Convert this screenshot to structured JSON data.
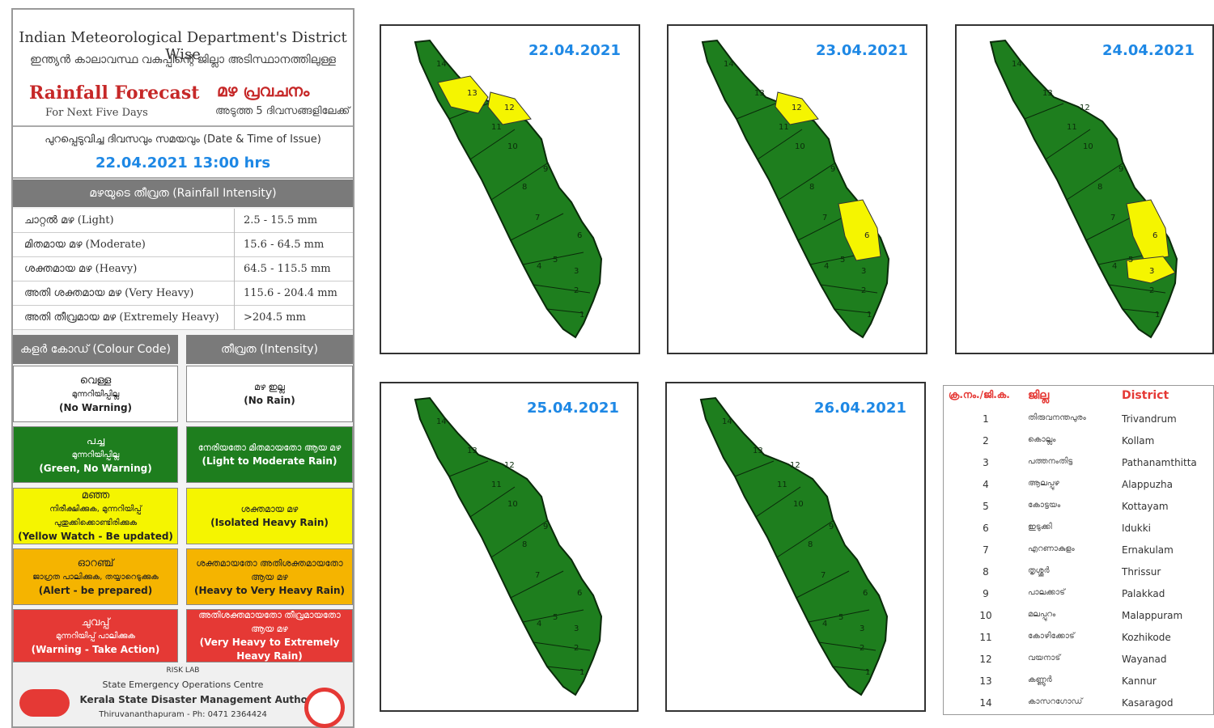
{
  "header": {
    "imd_title": "Indian Meteorological Department's District Wise",
    "imd_title_ml": "ഇന്ത്യൻ കാലാവസ്ഥ വകുപ്പിന്റെ ജില്ലാ അടിസ്ഥാനത്തിലുള്ള",
    "forecast_title": "Rainfall Forecast",
    "forecast_title_ml": "മഴ പ്രവചനം",
    "forecast_subtitle": "For Next Five Days",
    "forecast_subtitle_ml": "അടുത്ത 5 ദിവസങ്ങളിലേക്ക്"
  },
  "issue": {
    "label": "പുറപ്പെടുവിച്ച ദിവസവും സമയവും (Date & Time of Issue)",
    "value": "22.04.2021   13:00 hrs"
  },
  "intensity": {
    "header": "മഴയുടെ തീവ്രത (Rainfall Intensity)",
    "rows": [
      {
        "label": "ചാറ്റൽ മഴ (Light)",
        "range": "2.5 - 15.5 mm"
      },
      {
        "label": "മിതമായ മഴ (Moderate)",
        "range": "15.6 - 64.5 mm"
      },
      {
        "label": "ശക്തമായ മഴ (Heavy)",
        "range": "64.5 - 115.5 mm"
      },
      {
        "label": "അതി ശക്തമായ മഴ (Very Heavy)",
        "range": "115.6 - 204.4 mm"
      },
      {
        "label": "അതി തീവ്രമായ മഴ (Extremely Heavy)",
        "range": ">204.5 mm"
      }
    ]
  },
  "colour_code": {
    "header_left": "കളർ കോഡ് (Colour Code)",
    "header_right": "തീവ്രത (Intensity)",
    "rows": [
      {
        "left_ml": "വെള്ള",
        "left_ml2": "മുന്നറിയിപ്പില്ല",
        "left_en": "(No Warning)",
        "right_ml": "മഴ ഇല്ല",
        "right_en": "(No Rain)",
        "bg": "#ffffff",
        "fg": "#222222"
      },
      {
        "left_ml": "പച്ച",
        "left_ml2": "മുന്നറിയിപ്പില്ല",
        "left_en": "(Green, No Warning)",
        "right_ml": "നേരിയതോ മിതമായതോ ആയ മഴ",
        "right_en": "(Light to Moderate Rain)",
        "bg": "#1e7e1e",
        "fg": "#ffffff"
      },
      {
        "left_ml": "മഞ്ഞ",
        "left_ml2": "നിരീക്ഷിക്കുക, മുന്നറിയിപ്പ് പുതുക്കിക്കൊണ്ടിരിക്കുക",
        "left_en": "(Yellow Watch - Be updated)",
        "right_ml": "ശക്തമായ മഴ",
        "right_en": "(Isolated Heavy Rain)",
        "bg": "#f5f500",
        "fg": "#222222"
      },
      {
        "left_ml": "ഓറഞ്ച്",
        "left_ml2": "ജാഗ്രത പാലിക്കുക, തയ്യാറെടുക്കുക",
        "left_en": "(Alert - be prepared)",
        "right_ml": "ശക്തമായതോ അതിശക്തമായതോ ആയ മഴ",
        "right_en": "(Heavy to Very Heavy Rain)",
        "bg": "#f5b400",
        "fg": "#222222"
      },
      {
        "left_ml": "ചുവപ്പ്",
        "left_ml2": "മുന്നറിയിപ്പ് പാലിക്കുക",
        "left_en": "(Warning - Take Action)",
        "right_ml": "അതിശക്തമായതോ തീവ്രമായതോ ആയ മഴ",
        "right_en": "(Very Heavy to Extremely Heavy Rain)",
        "bg": "#e53935",
        "fg": "#ffffff"
      }
    ]
  },
  "footer": {
    "risk_lab": "RISK LAB",
    "centre": "State Emergency Operations Centre",
    "authority": "Kerala State Disaster Management Authority",
    "address": "Thiruvananthapuram - Ph: 0471 2364424"
  },
  "maps": [
    {
      "date": "22.04.2021",
      "yellow": [
        12,
        13
      ]
    },
    {
      "date": "23.04.2021",
      "yellow": [
        12,
        6
      ]
    },
    {
      "date": "24.04.2021",
      "yellow": [
        6,
        3
      ]
    },
    {
      "date": "25.04.2021",
      "yellow": []
    },
    {
      "date": "26.04.2021",
      "yellow": []
    }
  ],
  "colors": {
    "green": "#1e7e1e",
    "yellow": "#f5f500",
    "accent_blue": "#1e88e5",
    "title_red": "#c62828"
  },
  "districts": {
    "header_no": "ക്ര.നം./ജി.ക.",
    "header_ml": "ജില്ല",
    "header_en": "District",
    "rows": [
      {
        "n": "1",
        "ml": "തിരുവനന്തപുരം",
        "en": "Trivandrum"
      },
      {
        "n": "2",
        "ml": "കൊല്ലം",
        "en": "Kollam"
      },
      {
        "n": "3",
        "ml": "പത്തനംതിട്ട",
        "en": "Pathanamthitta"
      },
      {
        "n": "4",
        "ml": "ആലപ്പുഴ",
        "en": "Alappuzha"
      },
      {
        "n": "5",
        "ml": "കോട്ടയം",
        "en": "Kottayam"
      },
      {
        "n": "6",
        "ml": "ഇടുക്കി",
        "en": "Idukki"
      },
      {
        "n": "7",
        "ml": "എറണാകുളം",
        "en": "Ernakulam"
      },
      {
        "n": "8",
        "ml": "തൃശ്ശൂർ",
        "en": "Thrissur"
      },
      {
        "n": "9",
        "ml": "പാലക്കാട്",
        "en": "Palakkad"
      },
      {
        "n": "10",
        "ml": "മലപ്പുറം",
        "en": "Malappuram"
      },
      {
        "n": "11",
        "ml": "കോഴിക്കോട്",
        "en": "Kozhikode"
      },
      {
        "n": "12",
        "ml": "വയനാട്",
        "en": "Wayanad"
      },
      {
        "n": "13",
        "ml": "കണ്ണൂർ",
        "en": "Kannur"
      },
      {
        "n": "14",
        "ml": "കാസറഗോഡ്",
        "en": "Kasaragod"
      }
    ]
  }
}
